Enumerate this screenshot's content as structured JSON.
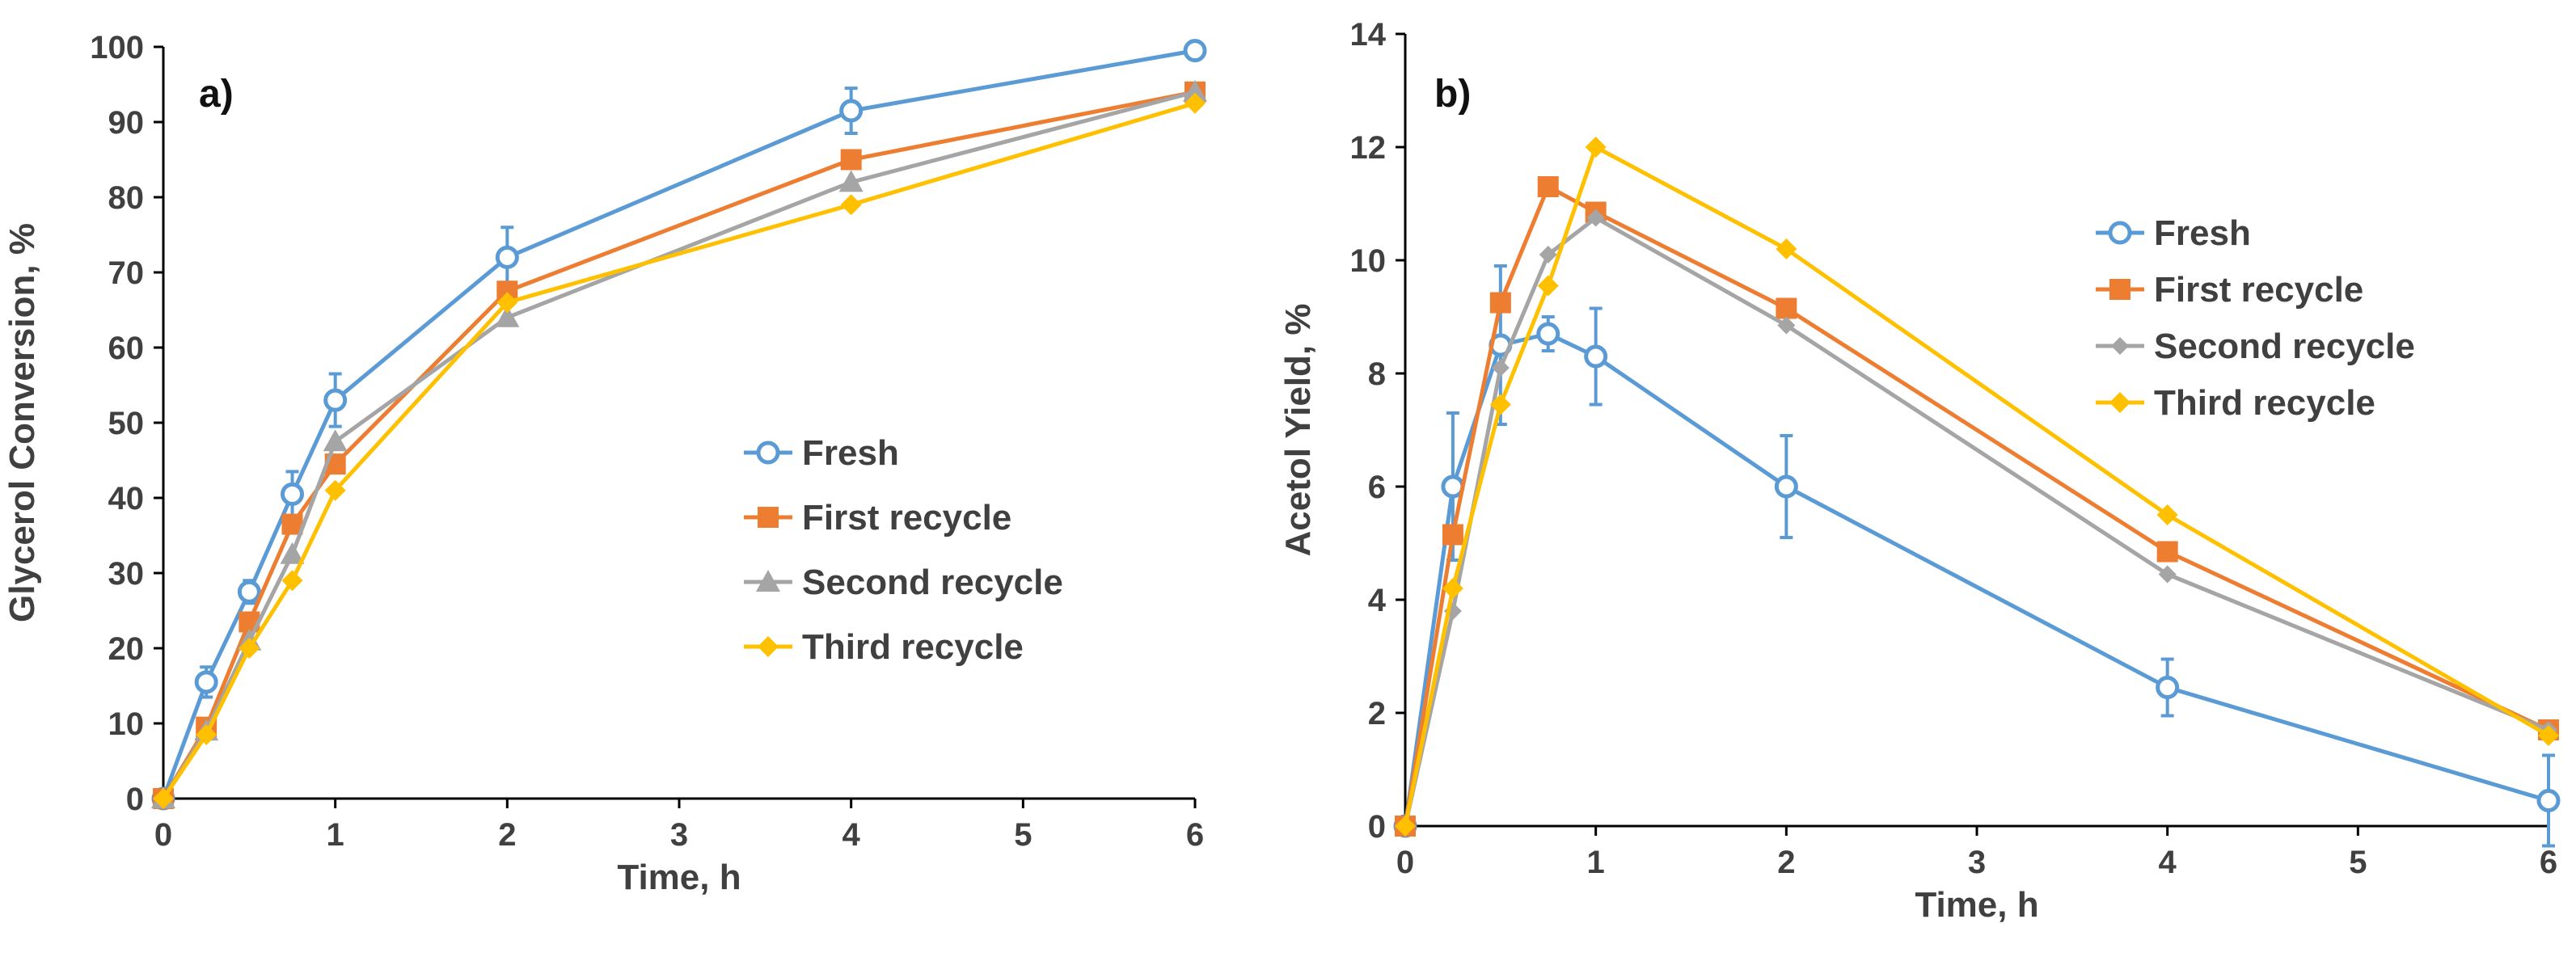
{
  "chart_data": [
    {
      "type": "line",
      "panel_label": "a)",
      "xlabel": "Time, h",
      "ylabel": "Glycerol Conversion, %",
      "xlim": [
        0,
        6
      ],
      "ylim": [
        0,
        100
      ],
      "xticks": [
        0,
        1,
        2,
        3,
        4,
        5,
        6
      ],
      "yticks": [
        0,
        10,
        20,
        30,
        40,
        50,
        60,
        70,
        80,
        90,
        100
      ],
      "legend_position": "center-right",
      "x": [
        0,
        0.25,
        0.5,
        0.75,
        1,
        2,
        4,
        6
      ],
      "series": [
        {
          "name": "Fresh",
          "marker": "circle-open",
          "color": "#5B9BD5",
          "values": [
            0,
            15.5,
            27.5,
            40.5,
            53,
            72,
            91.5,
            99.5
          ],
          "errors": [
            0,
            2,
            1.5,
            3,
            3.5,
            4,
            3,
            0
          ]
        },
        {
          "name": "First recycle",
          "marker": "square",
          "color": "#ED7D31",
          "values": [
            0,
            9.5,
            23.5,
            36.5,
            44.5,
            67.5,
            85,
            94
          ],
          "errors": [
            0,
            0,
            0,
            0,
            0,
            0,
            0,
            0
          ]
        },
        {
          "name": "Second recycle",
          "marker": "triangle",
          "color": "#A5A5A5",
          "values": [
            0,
            9,
            21,
            32.5,
            47.5,
            64,
            82,
            94
          ],
          "errors": [
            0,
            0,
            0,
            0,
            0,
            0,
            0,
            0
          ]
        },
        {
          "name": "Third recycle",
          "marker": "diamond",
          "color": "#FFC000",
          "values": [
            0,
            8.5,
            20,
            29,
            41,
            66,
            79,
            92.5
          ],
          "errors": [
            0,
            0,
            0,
            0,
            0,
            0,
            0,
            0
          ]
        }
      ]
    },
    {
      "type": "line",
      "panel_label": "b)",
      "xlabel": "Time, h",
      "ylabel": "Acetol Yield, %",
      "xlim": [
        0,
        6
      ],
      "ylim": [
        0,
        14
      ],
      "xticks": [
        0,
        1,
        2,
        3,
        4,
        5,
        6
      ],
      "yticks": [
        0,
        2,
        4,
        6,
        8,
        10,
        12,
        14
      ],
      "legend_position": "upper-right",
      "x": [
        0,
        0.25,
        0.5,
        0.75,
        1,
        2,
        4,
        6
      ],
      "series": [
        {
          "name": "Fresh",
          "marker": "circle-open",
          "color": "#5B9BD5",
          "values": [
            0,
            6,
            8.5,
            8.7,
            8.3,
            6,
            2.45,
            0.45
          ],
          "errors": [
            0,
            1.3,
            1.4,
            0.3,
            0.85,
            0.9,
            0.5,
            0.8
          ]
        },
        {
          "name": "First recycle",
          "marker": "square",
          "color": "#ED7D31",
          "values": [
            0,
            5.15,
            9.25,
            11.3,
            10.85,
            9.15,
            4.85,
            1.7
          ],
          "errors": [
            0,
            0,
            0,
            0,
            0,
            0,
            0,
            0
          ]
        },
        {
          "name": "Second recycle",
          "marker": "diamond-small",
          "color": "#A5A5A5",
          "values": [
            0,
            3.8,
            8.1,
            10.1,
            10.75,
            8.85,
            4.45,
            1.7
          ],
          "errors": [
            0,
            0,
            0,
            0,
            0,
            0,
            0,
            0
          ]
        },
        {
          "name": "Third recycle",
          "marker": "diamond",
          "color": "#FFC000",
          "values": [
            0,
            4.2,
            7.45,
            9.55,
            12,
            10.2,
            5.5,
            1.6
          ],
          "errors": [
            0,
            0,
            0,
            0,
            0,
            0,
            0,
            0
          ]
        }
      ]
    }
  ]
}
